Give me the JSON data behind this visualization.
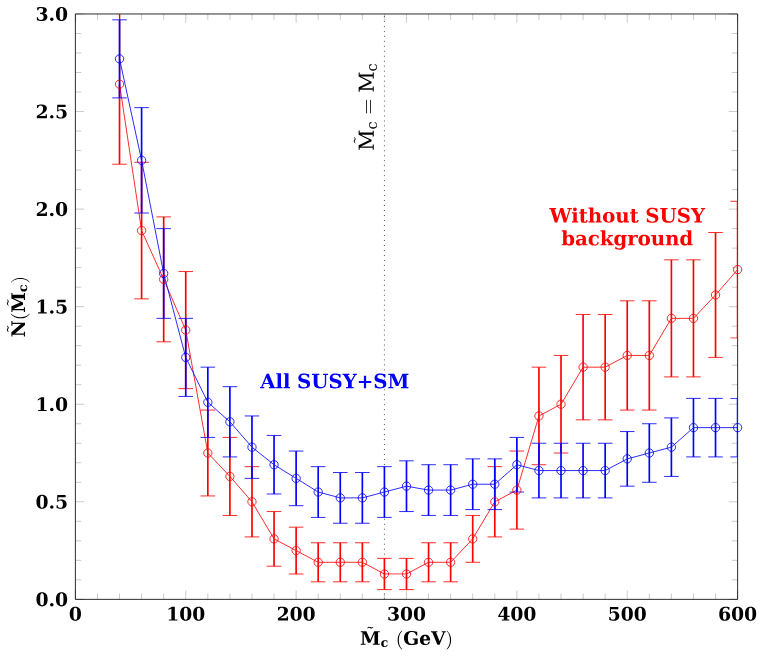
{
  "chart_data": {
    "type": "line",
    "xlabel": "\\tilde{\\mathbf{M}}_{\\mathbf{c}}\\ \\mathbf{(GeV)}",
    "ylabel": "\\tilde{\\mathbf{N}}(\\tilde{\\mathbf{M}}_{\\mathbf{c}})",
    "x": [
      40,
      60,
      80,
      100,
      120,
      140,
      160,
      180,
      200,
      220,
      240,
      260,
      280,
      300,
      320,
      340,
      360,
      380,
      400,
      420,
      440,
      460,
      480,
      500,
      520,
      540,
      560,
      580,
      600
    ],
    "series": [
      {
        "color": "#ff0000",
        "values": [
          2.64,
          1.89,
          1.64,
          1.38,
          0.75,
          0.63,
          0.5,
          0.31,
          0.25,
          0.19,
          0.19,
          0.19,
          0.13,
          0.13,
          0.19,
          0.19,
          0.31,
          0.5,
          0.56,
          0.94,
          1.0,
          1.19,
          1.19,
          1.25,
          1.25,
          1.44,
          1.44,
          1.56,
          1.69
        ],
        "errors": [
          0.41,
          0.35,
          0.32,
          0.3,
          0.22,
          0.2,
          0.18,
          0.14,
          0.12,
          0.1,
          0.1,
          0.1,
          0.08,
          0.08,
          0.1,
          0.1,
          0.12,
          0.18,
          0.2,
          0.25,
          0.25,
          0.27,
          0.27,
          0.28,
          0.28,
          0.3,
          0.3,
          0.32,
          0.35
        ]
      },
      {
        "color": "#0000ff",
        "values": [
          2.77,
          2.25,
          1.67,
          1.24,
          1.01,
          0.91,
          0.78,
          0.69,
          0.62,
          0.55,
          0.52,
          0.52,
          0.55,
          0.58,
          0.56,
          0.56,
          0.59,
          0.59,
          0.69,
          0.66,
          0.66,
          0.66,
          0.66,
          0.72,
          0.75,
          0.78,
          0.88,
          0.88,
          0.88
        ],
        "errors": [
          0.2,
          0.27,
          0.23,
          0.2,
          0.18,
          0.18,
          0.16,
          0.15,
          0.14,
          0.13,
          0.13,
          0.13,
          0.13,
          0.13,
          0.13,
          0.13,
          0.13,
          0.13,
          0.14,
          0.14,
          0.14,
          0.14,
          0.14,
          0.14,
          0.15,
          0.15,
          0.15,
          0.15,
          0.15
        ]
      }
    ],
    "xlim": [
      0,
      600
    ],
    "ylim": [
      0,
      3.0
    ],
    "xticks": [
      0,
      100,
      200,
      300,
      400,
      500,
      600
    ],
    "yticks": [
      {
        "value": 0,
        "label": "0.0"
      },
      {
        "value": 0.5,
        "label": "0.5"
      },
      {
        "value": 1,
        "label": "1.0"
      },
      {
        "value": 1.5,
        "label": "1.5"
      },
      {
        "value": 2,
        "label": "2.0"
      },
      {
        "value": 2.5,
        "label": "2.5"
      },
      {
        "value": 3,
        "label": "3.0"
      }
    ],
    "marker": "circle",
    "ref_lines": [
      {
        "axis": "x",
        "value": 280,
        "label": "\\tilde{\\mathrm{M}}_{\\mathrm{c}}=\\mathrm{M}_{\\mathrm{c}}",
        "color": "#000000",
        "line_style": "dotted"
      }
    ],
    "annotations": [
      "Without SUSY background",
      "All SUSY+SM"
    ]
  }
}
